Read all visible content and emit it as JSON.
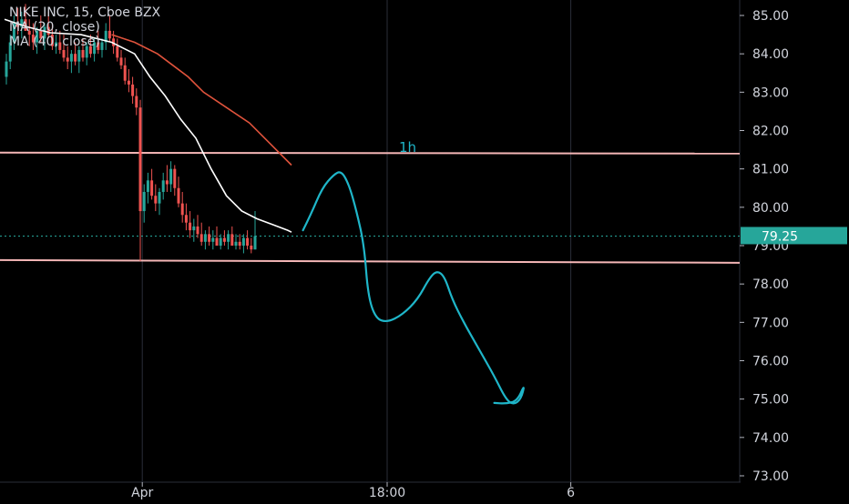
{
  "legend": {
    "symbol_line": "NIKE INC, 15, Cboe BZX",
    "ma1_line": "MA (20, close)",
    "ma2_line": "MA (40, close)"
  },
  "annotation_label": "1h",
  "colors": {
    "background": "#000000",
    "grid": "#2a2e39",
    "axis_text": "#d1d4dc",
    "candle_up": "#26a69a",
    "candle_down": "#ef5350",
    "ma20": "#ffffff",
    "ma40": "#e0533c",
    "support_line": "#f4b6b6",
    "drawing": "#1fb6c9",
    "price_badge": "#26a69a"
  },
  "chart_data": {
    "type": "candlestick",
    "price_axis": {
      "min": 73.0,
      "max": 85.0,
      "ticks": [
        "85.00",
        "84.00",
        "83.00",
        "82.00",
        "81.00",
        "80.00",
        "79.00",
        "78.00",
        "77.00",
        "76.00",
        "75.00",
        "74.00",
        "73.00"
      ]
    },
    "time_axis": {
      "labels": [
        {
          "text": "Apr",
          "bar": 36
        },
        {
          "text": "18:00",
          "bar": 100
        },
        {
          "text": "6",
          "bar": 148
        }
      ],
      "total_bars": 196
    },
    "current_price": "79.25",
    "candles": [
      [
        83.4,
        84.0,
        83.2,
        83.8
      ],
      [
        83.8,
        84.5,
        83.6,
        84.3
      ],
      [
        84.3,
        85.0,
        84.1,
        84.8
      ],
      [
        84.8,
        85.2,
        84.5,
        84.7
      ],
      [
        84.7,
        85.1,
        84.4,
        84.9
      ],
      [
        84.9,
        85.3,
        84.6,
        84.6
      ],
      [
        84.6,
        84.9,
        84.2,
        84.5
      ],
      [
        84.5,
        84.8,
        84.1,
        84.3
      ],
      [
        84.3,
        84.7,
        84.0,
        84.6
      ],
      [
        84.6,
        85.0,
        84.3,
        84.4
      ],
      [
        84.4,
        84.8,
        84.1,
        84.7
      ],
      [
        84.7,
        85.1,
        84.4,
        84.5
      ],
      [
        84.5,
        84.8,
        84.1,
        84.2
      ],
      [
        84.2,
        84.5,
        84.0,
        84.3
      ],
      [
        84.3,
        84.6,
        84.0,
        84.1
      ],
      [
        84.1,
        84.5,
        83.8,
        83.9
      ],
      [
        83.9,
        84.2,
        83.6,
        83.8
      ],
      [
        83.8,
        84.1,
        83.5,
        84.0
      ],
      [
        84.0,
        84.3,
        83.7,
        83.8
      ],
      [
        83.8,
        84.2,
        83.5,
        84.1
      ],
      [
        84.1,
        84.4,
        83.8,
        83.9
      ],
      [
        83.9,
        84.3,
        83.7,
        84.2
      ],
      [
        84.2,
        84.5,
        83.9,
        84.0
      ],
      [
        84.0,
        84.4,
        83.8,
        84.3
      ],
      [
        84.3,
        84.6,
        84.0,
        84.1
      ],
      [
        84.1,
        84.4,
        83.9,
        84.3
      ],
      [
        84.3,
        84.8,
        84.1,
        84.6
      ],
      [
        84.6,
        85.0,
        84.3,
        84.4
      ],
      [
        84.4,
        84.6,
        84.0,
        84.2
      ],
      [
        84.2,
        84.4,
        83.8,
        83.9
      ],
      [
        83.9,
        84.1,
        83.6,
        83.7
      ],
      [
        83.7,
        83.9,
        83.2,
        83.3
      ],
      [
        83.3,
        83.6,
        83.0,
        83.2
      ],
      [
        83.2,
        83.4,
        82.7,
        82.9
      ],
      [
        82.9,
        83.1,
        82.4,
        82.6
      ],
      [
        82.6,
        82.8,
        78.6,
        79.9
      ],
      [
        79.9,
        80.6,
        79.6,
        80.4
      ],
      [
        80.4,
        80.9,
        80.1,
        80.7
      ],
      [
        80.7,
        81.0,
        80.2,
        80.3
      ],
      [
        80.3,
        80.6,
        79.9,
        80.1
      ],
      [
        80.1,
        80.5,
        79.8,
        80.4
      ],
      [
        80.4,
        80.9,
        80.2,
        80.7
      ],
      [
        80.7,
        81.1,
        80.4,
        80.6
      ],
      [
        80.6,
        81.2,
        80.4,
        81.0
      ],
      [
        81.0,
        81.1,
        80.3,
        80.5
      ],
      [
        80.5,
        80.8,
        80.0,
        80.1
      ],
      [
        80.1,
        80.4,
        79.6,
        79.8
      ],
      [
        79.8,
        80.1,
        79.4,
        79.6
      ],
      [
        79.6,
        79.9,
        79.2,
        79.4
      ],
      [
        79.4,
        79.7,
        79.1,
        79.5
      ],
      [
        79.5,
        79.8,
        79.2,
        79.3
      ],
      [
        79.3,
        79.6,
        79.0,
        79.1
      ],
      [
        79.1,
        79.4,
        78.9,
        79.3
      ],
      [
        79.3,
        79.5,
        79.0,
        79.1
      ],
      [
        79.1,
        79.4,
        78.9,
        79.2
      ],
      [
        79.2,
        79.5,
        79.0,
        79.0
      ],
      [
        79.0,
        79.3,
        78.9,
        79.2
      ],
      [
        79.2,
        79.4,
        79.0,
        79.1
      ],
      [
        79.1,
        79.4,
        78.9,
        79.3
      ],
      [
        79.3,
        79.5,
        79.0,
        79.0
      ],
      [
        79.0,
        79.3,
        78.9,
        79.1
      ],
      [
        79.1,
        79.3,
        78.9,
        79.0
      ],
      [
        79.0,
        79.3,
        78.8,
        79.2
      ],
      [
        79.2,
        79.4,
        78.9,
        79.0
      ],
      [
        79.0,
        79.2,
        78.8,
        78.9
      ],
      [
        78.9,
        79.9,
        78.9,
        79.25
      ]
    ],
    "ma20": [
      [
        0,
        84.9
      ],
      [
        6,
        84.7
      ],
      [
        12,
        84.55
      ],
      [
        20,
        84.5
      ],
      [
        28,
        84.3
      ],
      [
        34,
        84.0
      ],
      [
        38,
        83.4
      ],
      [
        42,
        82.9
      ],
      [
        46,
        82.3
      ],
      [
        50,
        81.8
      ],
      [
        54,
        81.0
      ],
      [
        58,
        80.3
      ],
      [
        62,
        79.9
      ],
      [
        66,
        79.7
      ],
      [
        70,
        79.55
      ],
      [
        74,
        79.4
      ],
      [
        75,
        79.35
      ]
    ],
    "ma40": [
      [
        28,
        84.5
      ],
      [
        34,
        84.3
      ],
      [
        40,
        84.0
      ],
      [
        44,
        83.7
      ],
      [
        48,
        83.4
      ],
      [
        52,
        83.0
      ],
      [
        58,
        82.6
      ],
      [
        64,
        82.2
      ],
      [
        68,
        81.8
      ],
      [
        72,
        81.4
      ],
      [
        75,
        81.1
      ]
    ],
    "horizontal_lines": [
      81.4,
      78.6
    ],
    "drawing_path": [
      [
        78,
        79.4
      ],
      [
        80,
        79.8
      ],
      [
        83,
        80.5
      ],
      [
        86,
        80.85
      ],
      [
        88,
        80.95
      ],
      [
        90,
        80.6
      ],
      [
        92,
        79.9
      ],
      [
        94,
        79.0
      ],
      [
        95,
        77.7
      ],
      [
        97,
        77.1
      ],
      [
        100,
        77.0
      ],
      [
        104,
        77.2
      ],
      [
        108,
        77.6
      ],
      [
        111,
        78.15
      ],
      [
        113,
        78.35
      ],
      [
        115,
        78.2
      ],
      [
        117,
        77.6
      ],
      [
        120,
        77.0
      ],
      [
        124,
        76.3
      ],
      [
        128,
        75.6
      ],
      [
        131,
        75.0
      ],
      [
        133,
        74.85
      ],
      [
        135,
        75.0
      ],
      [
        136,
        75.4
      ],
      [
        134,
        74.95
      ],
      [
        131,
        74.88
      ],
      [
        128,
        74.9
      ]
    ]
  }
}
